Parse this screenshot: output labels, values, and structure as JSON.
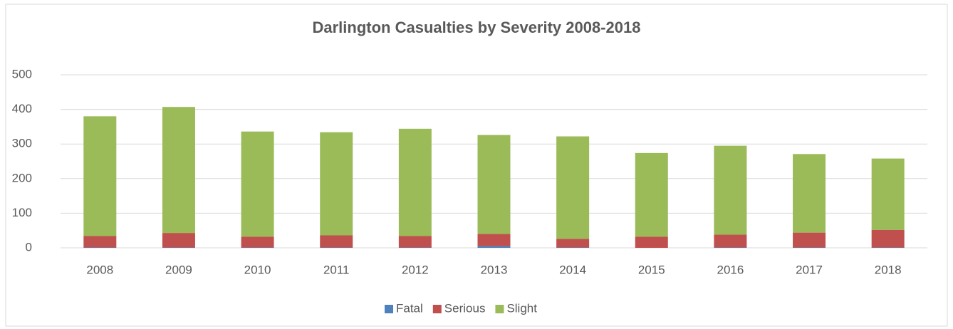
{
  "chart_data": {
    "type": "stacked_bar",
    "title": "Darlington Casualties by Severity 2008-2018",
    "categories": [
      "2008",
      "2009",
      "2010",
      "2011",
      "2012",
      "2013",
      "2014",
      "2015",
      "2016",
      "2017",
      "2018"
    ],
    "series": [
      {
        "name": "Fatal",
        "color": "#4f81bd",
        "values": [
          1,
          1,
          1,
          1,
          1,
          5,
          1,
          0,
          1,
          1,
          1
        ]
      },
      {
        "name": "Serious",
        "color": "#c0504d",
        "values": [
          33,
          42,
          31,
          35,
          33,
          35,
          25,
          32,
          37,
          43,
          51
        ]
      },
      {
        "name": "Slight",
        "color": "#9bbb59",
        "values": [
          346,
          364,
          304,
          298,
          310,
          286,
          296,
          242,
          257,
          227,
          206
        ]
      }
    ],
    "ylim": [
      0,
      500
    ],
    "yticks": [
      0,
      100,
      200,
      300,
      400,
      500
    ],
    "grid": true,
    "legend": "bottom"
  }
}
